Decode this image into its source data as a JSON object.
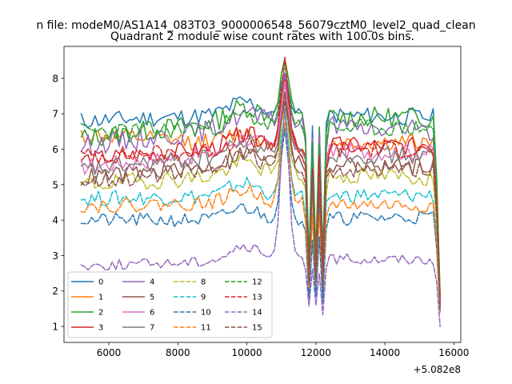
{
  "figure": {
    "suptitle": "n file: modeM0/AS1A14_083T03_9000006548_56079cztM0_level2_quad_clean"
  },
  "chart_data": {
    "type": "line",
    "title": "Quadrant 2 module wise count rates with 100.0s bins.",
    "xlabel": "",
    "ylabel": "",
    "x_offset_label": "+5.082e8",
    "xlim": [
      4700,
      16200
    ],
    "ylim": [
      0.55,
      8.9
    ],
    "x_ticks": [
      6000,
      8000,
      10000,
      12000,
      14000,
      16000
    ],
    "y_ticks": [
      1,
      2,
      3,
      4,
      5,
      6,
      7,
      8
    ],
    "legend": {
      "position": "lower-left",
      "columns": 4
    },
    "x_range": [
      5200,
      15600
    ],
    "x_step": 100,
    "event_features": [
      {
        "name": "peak",
        "x_start": 10800,
        "x_peak": 11100,
        "x_end": 11400
      },
      {
        "name": "dip",
        "x_start": 11700,
        "x_end": 12350
      },
      {
        "name": "drop",
        "x_start": 15450,
        "x_end": 15600
      }
    ],
    "series": [
      {
        "name": "0",
        "color": "#1f77b4",
        "style": "solid",
        "start": 6.8,
        "mid": 7.0,
        "end": 6.9,
        "noise": 0.25,
        "peak": 8.1,
        "dip": 2.6,
        "final": 1.6,
        "seed": 11
      },
      {
        "name": "1",
        "color": "#ff7f0e",
        "style": "solid",
        "start": 6.4,
        "mid": 6.1,
        "end": 6.2,
        "noise": 0.25,
        "peak": 7.6,
        "dip": 2.3,
        "final": 1.8,
        "seed": 12
      },
      {
        "name": "2",
        "color": "#2ca02c",
        "style": "solid",
        "start": 6.3,
        "mid": 6.9,
        "end": 6.9,
        "noise": 0.3,
        "peak": 8.6,
        "dip": 2.8,
        "final": 1.9,
        "seed": 13
      },
      {
        "name": "3",
        "color": "#d62728",
        "style": "solid",
        "start": 5.7,
        "mid": 6.1,
        "end": 6.1,
        "noise": 0.25,
        "peak": 8.0,
        "dip": 2.3,
        "final": 1.7,
        "seed": 14
      },
      {
        "name": "4",
        "color": "#9467bd",
        "style": "solid",
        "start": 6.1,
        "mid": 6.7,
        "end": 6.5,
        "noise": 0.3,
        "peak": 8.0,
        "dip": 2.5,
        "final": 1.7,
        "seed": 15
      },
      {
        "name": "5",
        "color": "#8c564b",
        "style": "solid",
        "start": 5.2,
        "mid": 5.6,
        "end": 5.5,
        "noise": 0.25,
        "peak": 7.4,
        "dip": 2.0,
        "final": 1.5,
        "seed": 16
      },
      {
        "name": "6",
        "color": "#e377c2",
        "style": "solid",
        "start": 5.5,
        "mid": 6.0,
        "end": 5.9,
        "noise": 0.25,
        "peak": 7.8,
        "dip": 2.2,
        "final": 1.6,
        "seed": 17
      },
      {
        "name": "7",
        "color": "#7f7f7f",
        "style": "solid",
        "start": 5.4,
        "mid": 5.9,
        "end": 5.8,
        "noise": 0.25,
        "peak": 7.5,
        "dip": 2.1,
        "final": 1.6,
        "seed": 18
      },
      {
        "name": "8",
        "color": "#bcbd22",
        "style": "dashed",
        "start": 5.0,
        "mid": 5.3,
        "end": 5.2,
        "noise": 0.25,
        "peak": 7.2,
        "dip": 2.0,
        "final": 1.5,
        "seed": 19
      },
      {
        "name": "9",
        "color": "#17becf",
        "style": "dashed",
        "start": 4.6,
        "mid": 4.7,
        "end": 4.7,
        "noise": 0.22,
        "peak": 7.0,
        "dip": 1.9,
        "final": 1.5,
        "seed": 20
      },
      {
        "name": "10",
        "color": "#1f77b4",
        "style": "dashed",
        "start": 4.0,
        "mid": 4.0,
        "end": 4.1,
        "noise": 0.2,
        "peak": 6.5,
        "dip": 1.7,
        "final": 1.4,
        "seed": 21
      },
      {
        "name": "11",
        "color": "#ff7f0e",
        "style": "dashed",
        "start": 4.4,
        "mid": 4.5,
        "end": 4.4,
        "noise": 0.2,
        "peak": 6.8,
        "dip": 1.9,
        "final": 1.4,
        "seed": 22
      },
      {
        "name": "12",
        "color": "#2ca02c",
        "style": "dashed",
        "start": 6.5,
        "mid": 6.6,
        "end": 6.6,
        "noise": 0.25,
        "peak": 8.4,
        "dip": 2.7,
        "final": 1.9,
        "seed": 23
      },
      {
        "name": "13",
        "color": "#d62728",
        "style": "dashed",
        "start": 5.8,
        "mid": 6.0,
        "end": 6.0,
        "noise": 0.25,
        "peak": 8.5,
        "dip": 2.4,
        "final": 1.7,
        "seed": 24
      },
      {
        "name": "14",
        "color": "#9467bd",
        "style": "dashed",
        "start": 2.7,
        "mid": 2.9,
        "end": 2.9,
        "noise": 0.15,
        "peak": 7.2,
        "dip": 1.5,
        "final": 1.0,
        "seed": 25
      },
      {
        "name": "15",
        "color": "#8c564b",
        "style": "dashed",
        "start": 5.1,
        "mid": 5.5,
        "end": 5.4,
        "noise": 0.25,
        "peak": 7.6,
        "dip": 2.0,
        "final": 1.5,
        "seed": 26
      }
    ]
  }
}
